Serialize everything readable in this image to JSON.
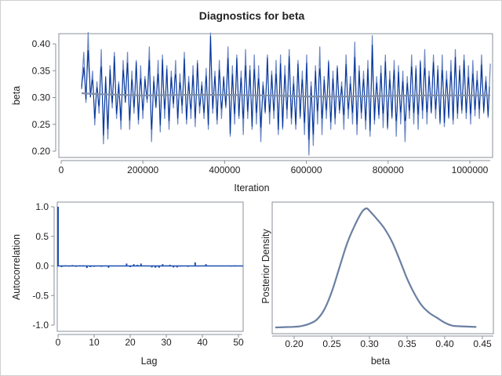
{
  "title": "Diagnostics for beta",
  "colors": {
    "trace_dark": "#003399",
    "trace_light": "#6a85c4",
    "smooth": "#8090a8",
    "acf": "#1a4fb0",
    "density": "#6a7fa3",
    "frame": "#8a8f98"
  },
  "chart_data": [
    {
      "type": "line",
      "name": "trace",
      "xlabel": "Iteration",
      "ylabel": "beta",
      "xlim": [
        0,
        1050000
      ],
      "ylim": [
        0.19,
        0.425
      ],
      "xticks": [
        "0",
        "200000",
        "400000",
        "600000",
        "800000",
        "1000000"
      ],
      "xtick_values": [
        0,
        200000,
        400000,
        600000,
        800000,
        1000000
      ],
      "yticks": [
        "0.20",
        "0.25",
        "0.30",
        "0.35",
        "0.40"
      ],
      "ytick_values": [
        0.2,
        0.25,
        0.3,
        0.35,
        0.4
      ],
      "x_start": 50000,
      "x_end": 1050000,
      "values": [
        0.32,
        0.385,
        0.29,
        0.422,
        0.3,
        0.35,
        0.248,
        0.33,
        0.27,
        0.39,
        0.213,
        0.34,
        0.222,
        0.36,
        0.28,
        0.385,
        0.26,
        0.33,
        0.24,
        0.37,
        0.29,
        0.385,
        0.24,
        0.35,
        0.27,
        0.37,
        0.25,
        0.36,
        0.26,
        0.34,
        0.29,
        0.395,
        0.217,
        0.34,
        0.28,
        0.37,
        0.235,
        0.38,
        0.26,
        0.36,
        0.24,
        0.35,
        0.28,
        0.37,
        0.25,
        0.345,
        0.27,
        0.385,
        0.25,
        0.34,
        0.26,
        0.36,
        0.245,
        0.37,
        0.27,
        0.33,
        0.26,
        0.355,
        0.24,
        0.421,
        0.27,
        0.35,
        0.25,
        0.37,
        0.26,
        0.34,
        0.28,
        0.395,
        0.227,
        0.36,
        0.25,
        0.38,
        0.26,
        0.35,
        0.23,
        0.39,
        0.26,
        0.36,
        0.24,
        0.38,
        0.25,
        0.36,
        0.217,
        0.33,
        0.27,
        0.38,
        0.25,
        0.35,
        0.26,
        0.37,
        0.23,
        0.38,
        0.24,
        0.36,
        0.26,
        0.39,
        0.25,
        0.34,
        0.24,
        0.37,
        0.26,
        0.35,
        0.23,
        0.38,
        0.192,
        0.33,
        0.21,
        0.36,
        0.25,
        0.395,
        0.23,
        0.34,
        0.26,
        0.37,
        0.24,
        0.35,
        0.25,
        0.36,
        0.27,
        0.33,
        0.24,
        0.38,
        0.26,
        0.34,
        0.25,
        0.404,
        0.23,
        0.36,
        0.26,
        0.35,
        0.24,
        0.37,
        0.227,
        0.416,
        0.25,
        0.34,
        0.26,
        0.36,
        0.243,
        0.38,
        0.24,
        0.35,
        0.26,
        0.37,
        0.227,
        0.36,
        0.25,
        0.35,
        0.217,
        0.34,
        0.26,
        0.38,
        0.25,
        0.36,
        0.24,
        0.37,
        0.26,
        0.39,
        0.25,
        0.35,
        0.27,
        0.38,
        0.26,
        0.36,
        0.25,
        0.38,
        0.245,
        0.35,
        0.26,
        0.37,
        0.25,
        0.39,
        0.26,
        0.36,
        0.27,
        0.38,
        0.26,
        0.36,
        0.25,
        0.37,
        0.265,
        0.35,
        0.26,
        0.38,
        0.27,
        0.34,
        0.262,
        0.363
      ],
      "smooth_x": [
        50000,
        100000,
        200000,
        300000,
        400000,
        500000,
        600000,
        700000,
        800000,
        900000,
        1050000
      ],
      "smooth_y": [
        0.308,
        0.306,
        0.304,
        0.305,
        0.305,
        0.304,
        0.302,
        0.302,
        0.303,
        0.304,
        0.304
      ]
    },
    {
      "type": "bar",
      "name": "autocorrelation",
      "xlabel": "Lag",
      "ylabel": "Autocorrelation",
      "xlim": [
        0,
        51
      ],
      "ylim": [
        -1.05,
        1.05
      ],
      "xticks": [
        "0",
        "10",
        "20",
        "30",
        "40",
        "50"
      ],
      "xtick_values": [
        0,
        10,
        20,
        30,
        40,
        50
      ],
      "yticks": [
        "-1.0",
        "-0.5",
        "0.0",
        "0.5",
        "1.0"
      ],
      "ytick_values": [
        -1.0,
        -0.5,
        0.0,
        0.5,
        1.0
      ],
      "lags": [
        0,
        1,
        2,
        3,
        4,
        5,
        6,
        7,
        8,
        9,
        10,
        11,
        12,
        13,
        14,
        15,
        16,
        17,
        18,
        19,
        20,
        21,
        22,
        23,
        24,
        25,
        26,
        27,
        28,
        29,
        30,
        31,
        32,
        33,
        34,
        35,
        36,
        37,
        38,
        39,
        40,
        41,
        42,
        43,
        44,
        45,
        46,
        47,
        48,
        49,
        50
      ],
      "values": [
        1.0,
        -0.02,
        0.01,
        -0.01,
        0.015,
        -0.015,
        0.01,
        0.01,
        -0.035,
        -0.02,
        -0.015,
        0.005,
        -0.015,
        0.0,
        -0.03,
        0.0,
        0.0,
        0.0,
        -0.005,
        0.04,
        -0.02,
        0.03,
        0.02,
        0.04,
        0.0,
        0.005,
        -0.025,
        -0.03,
        -0.03,
        0.03,
        0.01,
        0.02,
        -0.025,
        -0.025,
        -0.01,
        0.0,
        -0.015,
        0.0,
        0.06,
        0.0,
        0.0,
        0.03,
        0.0,
        0.0,
        0.0,
        0.0,
        -0.005,
        0.0,
        -0.01,
        0.01,
        0.0
      ]
    },
    {
      "type": "line",
      "name": "density",
      "xlabel": "beta",
      "ylabel": "Posterior Density",
      "xlim": [
        0.172,
        0.455
      ],
      "xticks": [
        "0.20",
        "0.25",
        "0.30",
        "0.35",
        "0.40",
        "0.45"
      ],
      "xtick_values": [
        0.2,
        0.25,
        0.3,
        0.35,
        0.4,
        0.45
      ],
      "x": [
        0.175,
        0.19,
        0.2,
        0.21,
        0.22,
        0.23,
        0.24,
        0.25,
        0.26,
        0.27,
        0.28,
        0.29,
        0.296,
        0.3,
        0.31,
        0.32,
        0.33,
        0.34,
        0.35,
        0.36,
        0.37,
        0.38,
        0.39,
        0.4,
        0.41,
        0.42,
        0.43,
        0.442
      ],
      "values": [
        0.0,
        0.003,
        0.005,
        0.012,
        0.03,
        0.065,
        0.15,
        0.3,
        0.5,
        0.7,
        0.85,
        0.97,
        1.0,
        0.98,
        0.91,
        0.83,
        0.72,
        0.57,
        0.41,
        0.28,
        0.18,
        0.12,
        0.08,
        0.04,
        0.015,
        0.01,
        0.007,
        0.004
      ]
    }
  ]
}
